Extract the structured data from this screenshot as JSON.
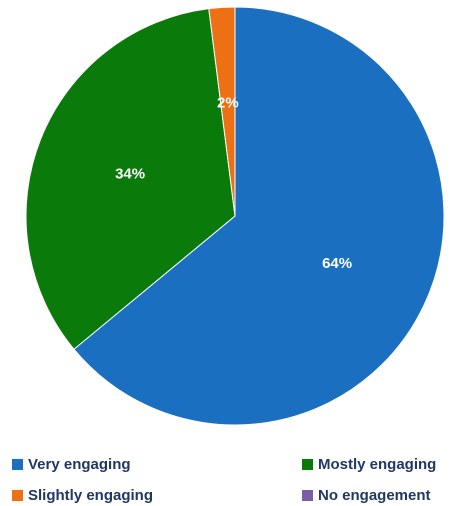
{
  "chart_data": {
    "type": "pie",
    "title": "",
    "categories": [
      "Very engaging",
      "Mostly engaging",
      "Slightly engaging",
      "No engagement"
    ],
    "values": [
      64,
      34,
      2,
      0
    ],
    "labels": [
      "64%",
      "34%",
      "2%",
      ""
    ],
    "colors": [
      "#1a6fc0",
      "#0a7a0a",
      "#ee7014",
      "#7b5ea7"
    ],
    "legend_position": "bottom"
  }
}
